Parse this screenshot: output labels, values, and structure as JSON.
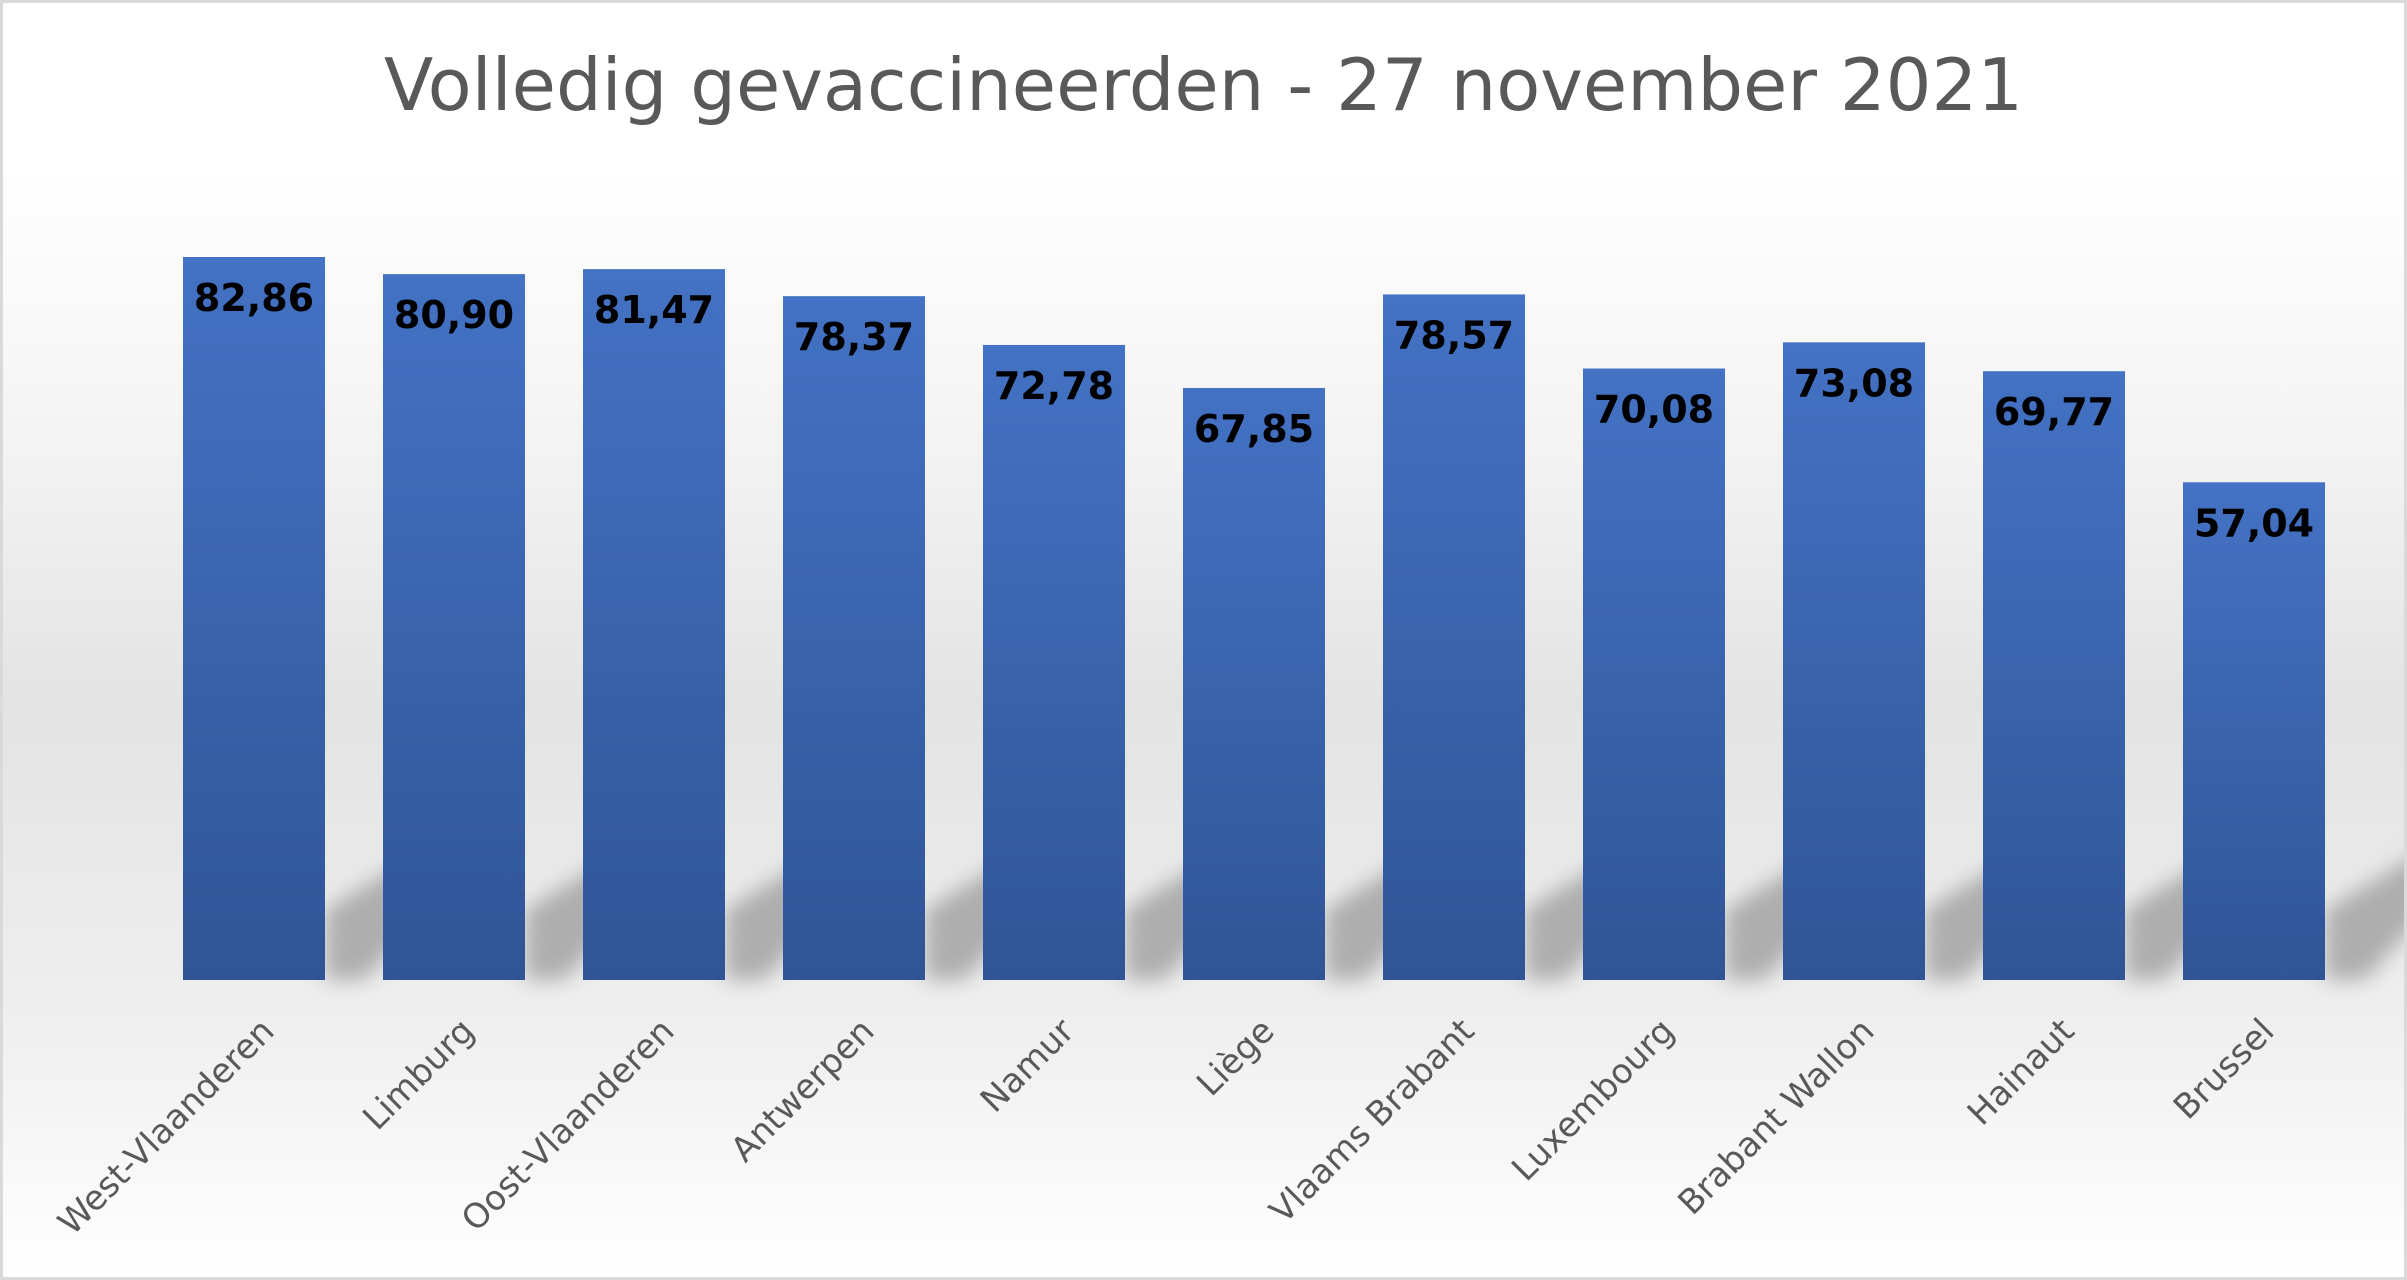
{
  "chart_data": {
    "type": "bar",
    "title": "Volledig gevaccineerden - 27 november 2021",
    "categories": [
      "West-Vlaanderen",
      "Limburg",
      "Oost-Vlaanderen",
      "Antwerpen",
      "Namur",
      "Liège",
      "Vlaams Brabant",
      "Luxembourg",
      "Brabant Wallon",
      "Hainaut",
      "Brussel"
    ],
    "values": [
      82.86,
      80.9,
      81.47,
      78.37,
      72.78,
      67.85,
      78.57,
      70.08,
      73.08,
      69.77,
      57.04
    ],
    "value_labels": [
      "82,86",
      "80,90",
      "81,47",
      "78,37",
      "72,78",
      "67,85",
      "78,57",
      "70,08",
      "73,08",
      "69,77",
      "57,04"
    ],
    "xlabel": "",
    "ylabel": "",
    "ylim": [
      0,
      100
    ],
    "grid": false,
    "legend": "none",
    "bar_color_top": "#4472c4",
    "bar_color_bottom": "#2f5597"
  }
}
